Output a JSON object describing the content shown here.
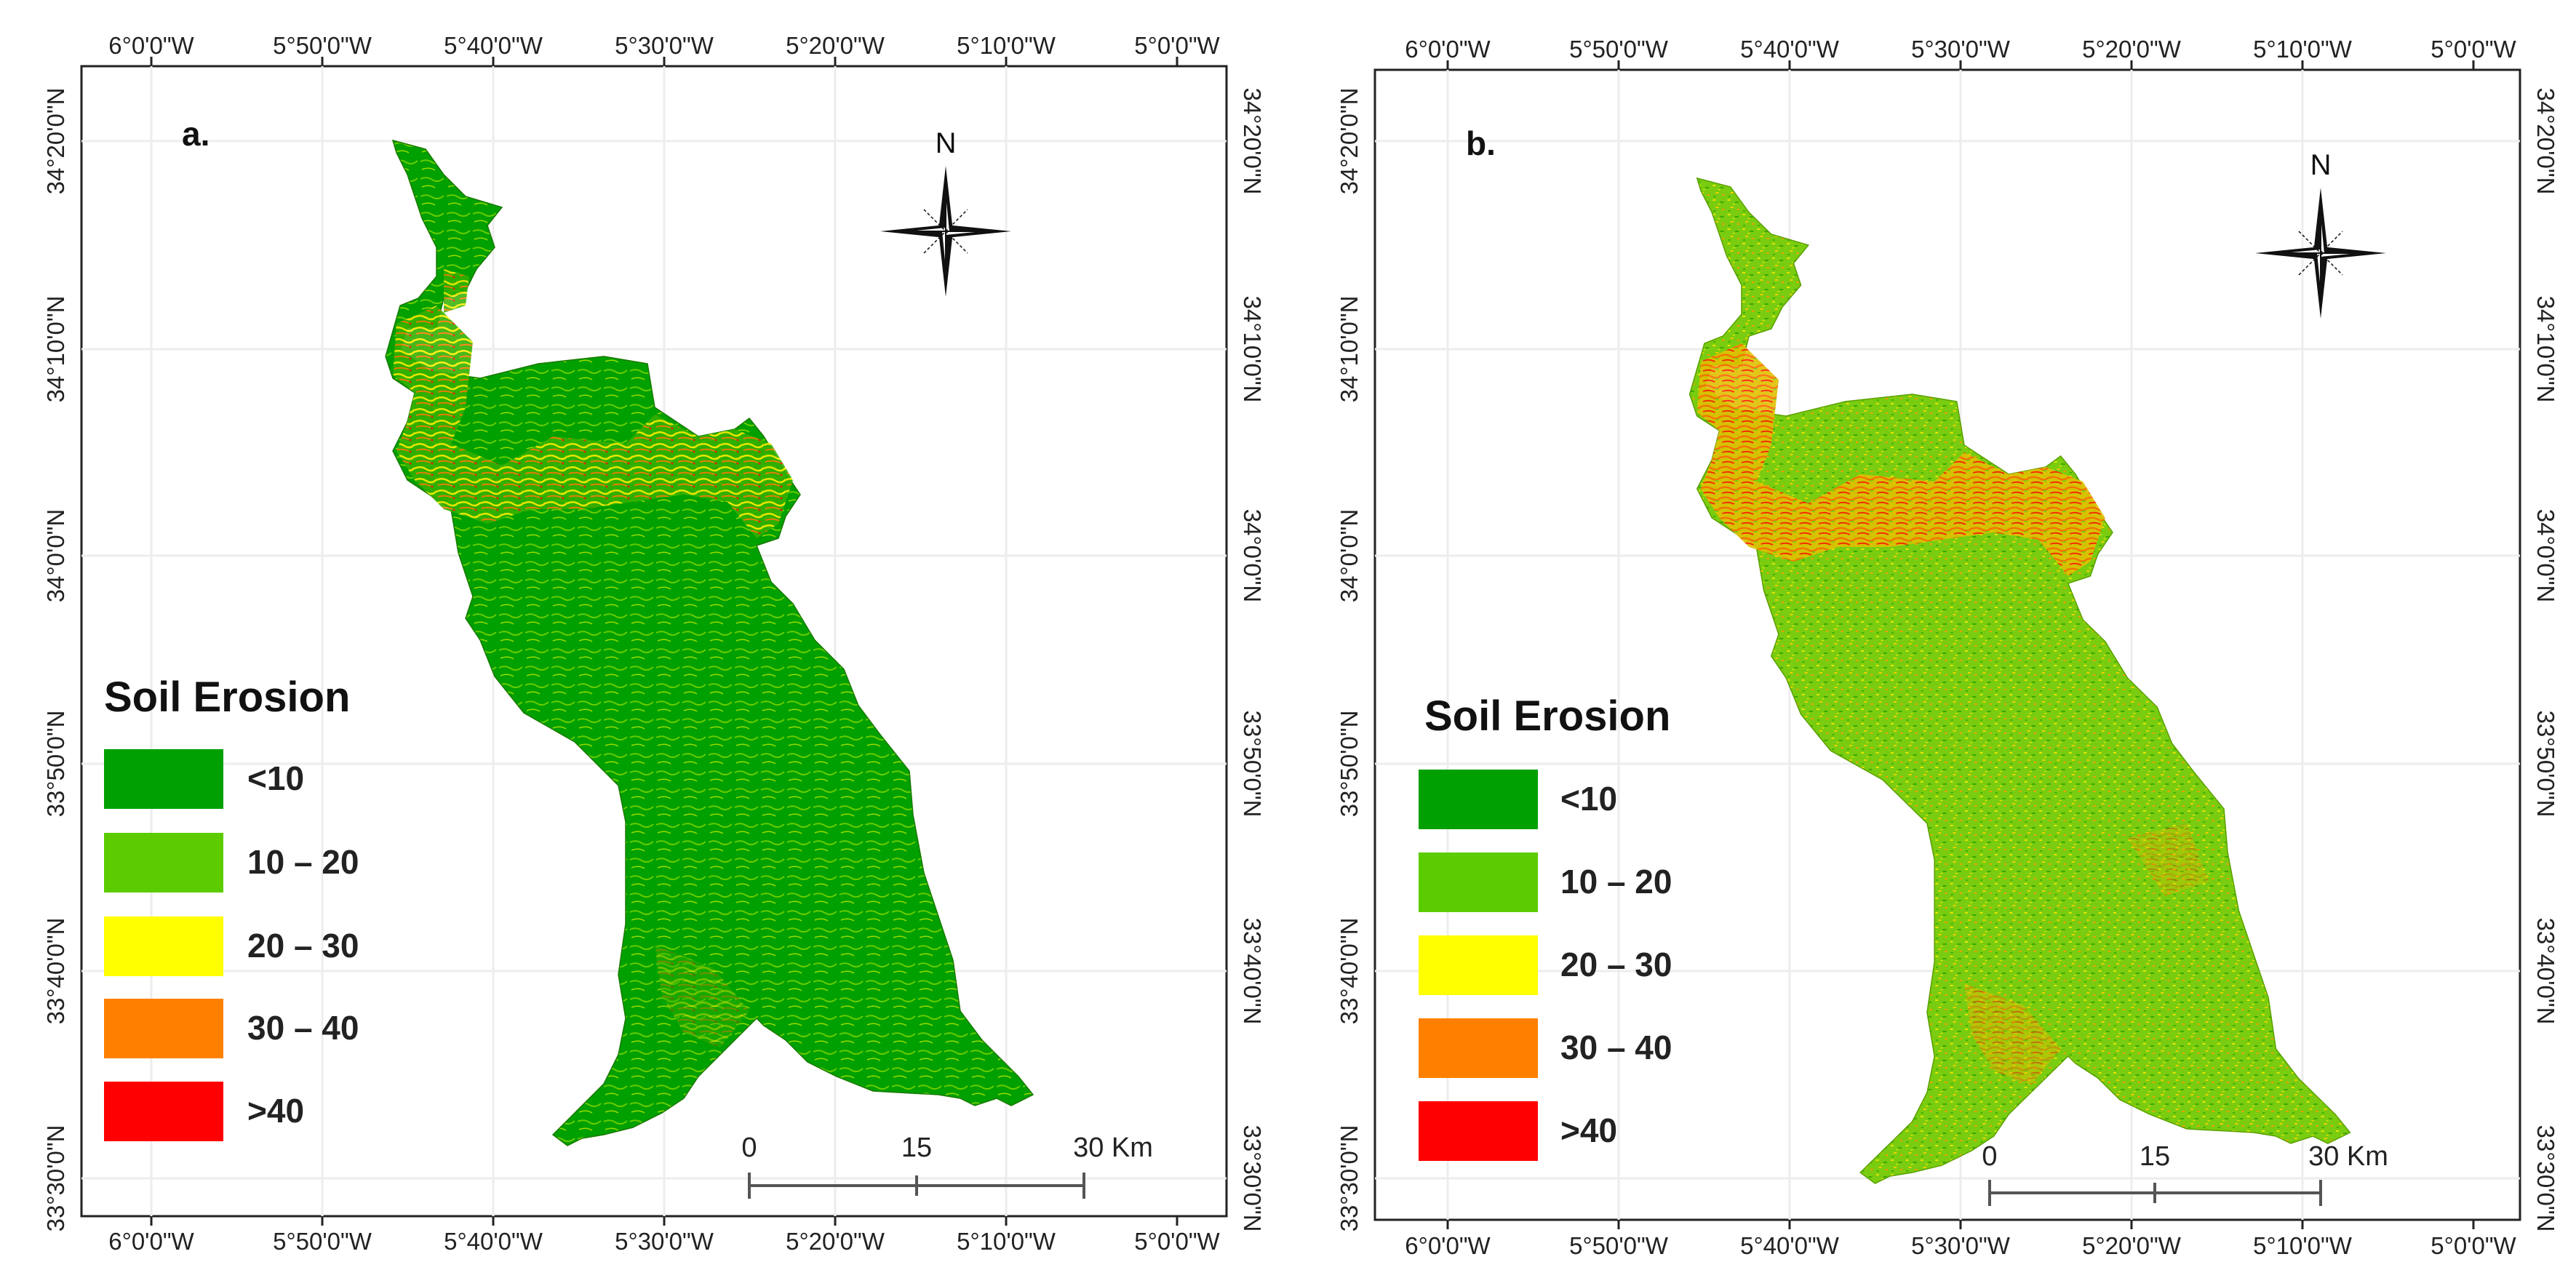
{
  "map_a": {
    "label": "a.",
    "lon_ticks": [
      "6°0'0\"W",
      "5°50'0\"W",
      "5°40'0\"W",
      "5°30'0\"W",
      "5°20'0\"W",
      "5°10'0\"W",
      "5°0'0\"W"
    ],
    "lat_ticks": [
      "34°20'0\"N",
      "34°10'0\"N",
      "34°0'0\"N",
      "33°50'0\"N",
      "33°40'0\"N",
      "33°30'0\"N"
    ],
    "legend_title": "Soil Erosion",
    "legend": [
      {
        "label": "<10",
        "color": "#00a000"
      },
      {
        "label": "10 – 20",
        "color": "#5ccc00"
      },
      {
        "label": "20 – 30",
        "color": "#ffff00"
      },
      {
        "label": "30 – 40",
        "color": "#ff8000"
      },
      {
        "label": ">40",
        "color": "#ff0000"
      }
    ],
    "scale": {
      "zero": "0",
      "mid": "15",
      "end": "30 Km"
    },
    "north": "N"
  },
  "map_b": {
    "label": "b.",
    "lon_ticks": [
      "6°0'0\"W",
      "5°50'0\"W",
      "5°40'0\"W",
      "5°30'0\"W",
      "5°20'0\"W",
      "5°10'0\"W",
      "5°0'0\"W"
    ],
    "lat_ticks": [
      "34°20'0\"N",
      "34°10'0\"N",
      "34°0'0\"N",
      "33°50'0\"N",
      "33°40'0\"N",
      "33°30'0\"N"
    ],
    "legend_title": "Soil Erosion",
    "legend": [
      {
        "label": "<10",
        "color": "#00a000"
      },
      {
        "label": "10 – 20",
        "color": "#5ccc00"
      },
      {
        "label": "20 – 30",
        "color": "#ffff00"
      },
      {
        "label": "30 – 40",
        "color": "#ff8000"
      },
      {
        "label": ">40",
        "color": "#ff0000"
      }
    ],
    "scale": {
      "zero": "0",
      "mid": "15",
      "end": "30 Km"
    },
    "north": "N"
  }
}
